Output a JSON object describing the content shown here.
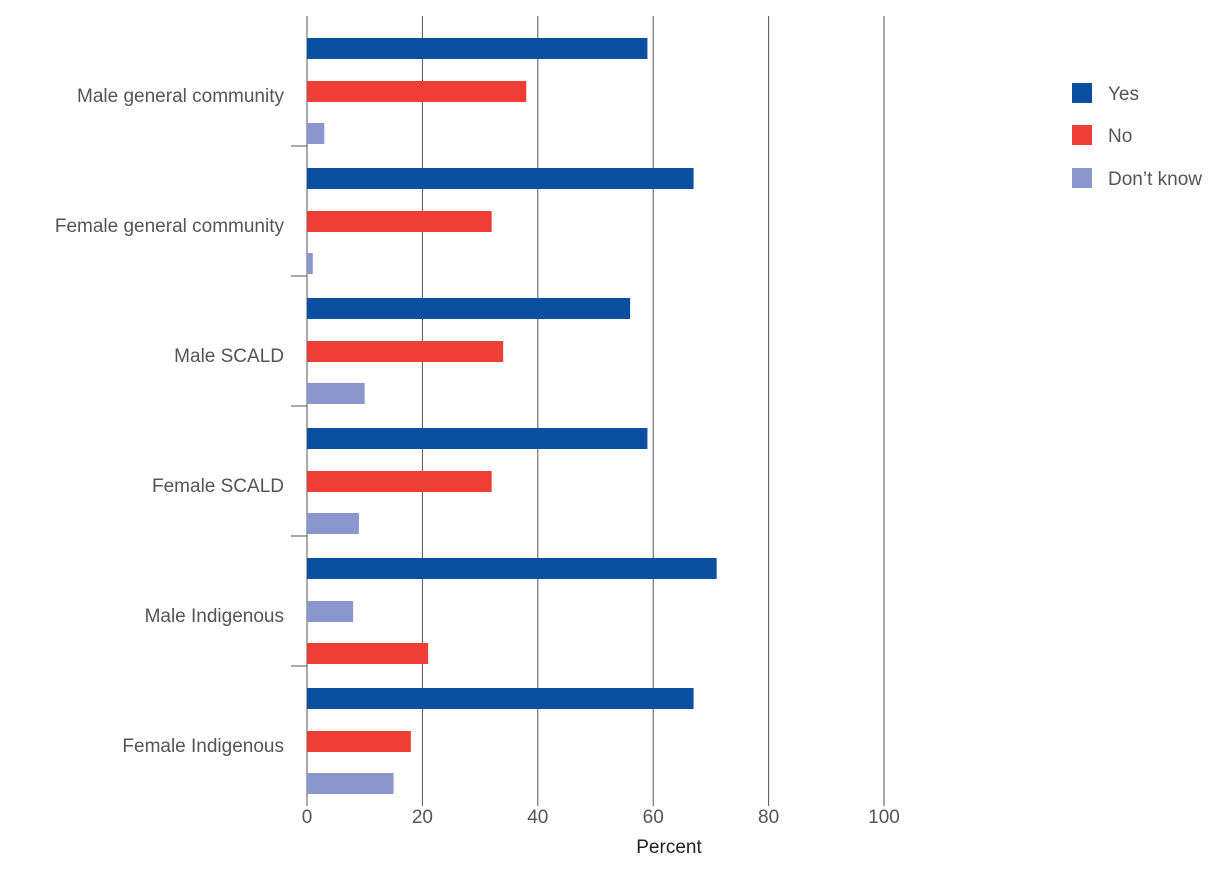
{
  "chart_data": {
    "type": "bar",
    "orientation": "horizontal",
    "categories": [
      "Male general community",
      "Female general community",
      "Male SCALD",
      "Female SCALD",
      "Male Indigenous",
      "Female Indigenous"
    ],
    "series": [
      {
        "name": "Yes",
        "color": "#0b4fa0",
        "values": [
          59,
          67,
          56,
          59,
          71,
          67
        ]
      },
      {
        "name": "No",
        "color": "#ee3e36",
        "values": [
          38,
          32,
          34,
          32,
          21,
          18
        ]
      },
      {
        "name": "Don't know",
        "color": "#8b96cc",
        "values": [
          3,
          1,
          10,
          9,
          8,
          15
        ]
      }
    ],
    "bar_order": [
      [
        "Yes",
        "No",
        "Don't know"
      ],
      [
        "Yes",
        "No",
        "Don't know"
      ],
      [
        "Yes",
        "No",
        "Don't know"
      ],
      [
        "Yes",
        "No",
        "Don't know"
      ],
      [
        "Yes",
        "Don't know",
        "No"
      ],
      [
        "Yes",
        "No",
        "Don't know"
      ]
    ],
    "xlabel": "Percent",
    "ylabel": "",
    "xlim": [
      0,
      100
    ],
    "xticks": [
      0,
      20,
      40,
      60,
      80,
      100
    ],
    "grid": true,
    "legend_position": "top-right"
  },
  "legend": {
    "items": [
      "Yes",
      "No",
      "Don’t know"
    ]
  }
}
